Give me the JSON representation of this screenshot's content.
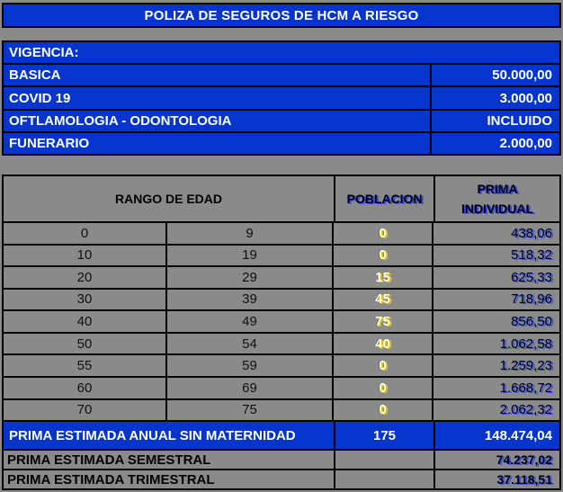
{
  "title": "POLIZA DE SEGUROS DE HCM A RIESGO",
  "colors": {
    "accent_blue": "#0535cd",
    "background_gray": "#8a8a8a",
    "border_black": "#000000",
    "value_shadow_blue": "#3350f5",
    "population_shadow_yellow": "#e9c400"
  },
  "vigencia": {
    "header": "VIGENCIA:",
    "rows": [
      {
        "label": "BASICA",
        "value": "50.000,00"
      },
      {
        "label": "COVID 19",
        "value": "3.000,00"
      },
      {
        "label": "OFTLAMOLOGIA - ODONTOLOGIA",
        "value": "INCLUIDO"
      },
      {
        "label": "FUNERARIO",
        "value": "2.000,00"
      }
    ]
  },
  "age_table": {
    "headers": {
      "rango": "RANGO DE EDAD",
      "poblacion": "POBLACION",
      "prima_line1": "PRIMA",
      "prima_line2": "INDIVIDUAL"
    },
    "rows": [
      {
        "from": "0",
        "to": "9",
        "poblacion": "0",
        "prima": "438,06"
      },
      {
        "from": "10",
        "to": "19",
        "poblacion": "0",
        "prima": "518,32"
      },
      {
        "from": "20",
        "to": "29",
        "poblacion": "15",
        "prima": "625,33"
      },
      {
        "from": "30",
        "to": "39",
        "poblacion": "45",
        "prima": "718,96"
      },
      {
        "from": "40",
        "to": "49",
        "poblacion": "75",
        "prima": "856,50"
      },
      {
        "from": "50",
        "to": "54",
        "poblacion": "40",
        "prima": "1.062,58"
      },
      {
        "from": "55",
        "to": "59",
        "poblacion": "0",
        "prima": "1.259,23"
      },
      {
        "from": "60",
        "to": "69",
        "poblacion": "0",
        "prima": "1.668,72"
      },
      {
        "from": "70",
        "to": "75",
        "poblacion": "0",
        "prima": "2.062,32"
      }
    ],
    "totals": {
      "anual": {
        "label": "PRIMA ESTIMADA ANUAL SIN MATERNIDAD",
        "poblacion": "175",
        "prima": "148.474,04"
      },
      "semestral": {
        "label": "PRIMA ESTIMADA SEMESTRAL",
        "prima": "74.237,02"
      },
      "trimestral": {
        "label": "PRIMA ESTIMADA TRIMESTRAL",
        "prima": "37.118,51"
      }
    }
  }
}
